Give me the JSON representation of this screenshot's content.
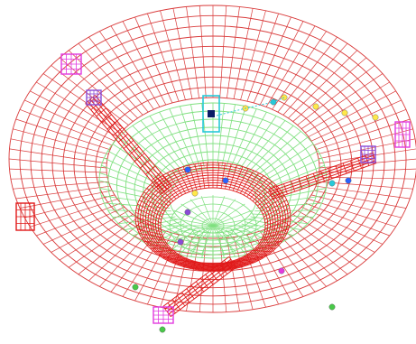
{
  "viewport": {
    "background": "#ffffff"
  },
  "mesh": {
    "outer_ring_color": "#d93a3a",
    "inner_floor_color": "#7fe07f",
    "dense_zone_color": "#e01818"
  },
  "nodes": {
    "yellow_color": "#ffe84a",
    "blue_color": "#2a62ff",
    "magenta_color": "#e23adf",
    "cyan_color": "#27c9d9",
    "dark_color": "#0a1a66",
    "green_color": "#48c948",
    "purple_color": "#8a4bd6"
  },
  "icons": {
    "selection_marker": "selection-box-icon",
    "node": "node-marker-icon"
  }
}
